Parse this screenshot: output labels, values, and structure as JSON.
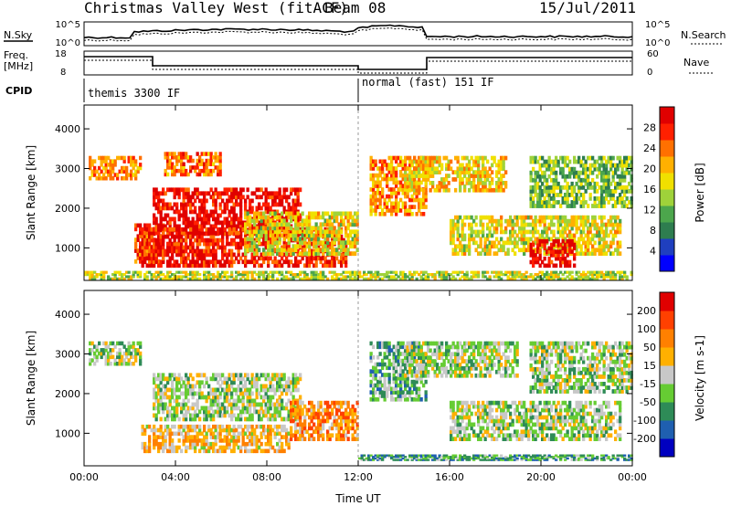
{
  "header": {
    "site": "Christmas Valley West (fitACF)",
    "beam": "Beam 08",
    "date": "15/Jul/2011"
  },
  "strip": {
    "nsky_label": "N.Sky",
    "nsearch_label": "N.Search",
    "freq_label_1": "Freq.",
    "freq_label_2": "[MHz]",
    "nave_label": "Nave",
    "cpid_label": "CPID",
    "left_ticks_top": [
      "10^5",
      "10^0"
    ],
    "right_ticks_top": [
      "10^5",
      "10^0"
    ],
    "left_ticks_freq": [
      "18",
      "8"
    ],
    "right_ticks_nave": [
      "60",
      "0"
    ],
    "cpid_segments": [
      {
        "label": "themis 3300 IF",
        "start_hour": 0,
        "end_hour": 12
      },
      {
        "label": "normal (fast) 151 IF",
        "start_hour": 12,
        "end_hour": 24
      }
    ]
  },
  "chart_data": [
    {
      "type": "heatmap",
      "name": "power",
      "ylabel": "Slant Range [km]",
      "ylim": [
        180,
        4600
      ],
      "yticks": [
        1000,
        2000,
        3000,
        4000
      ],
      "xlim": [
        0,
        24
      ],
      "xticks": [
        "00:00",
        "04:00",
        "08:00",
        "12:00",
        "16:00",
        "20:00",
        "00:00"
      ],
      "colorbar": {
        "label": "Power [dB]",
        "ticks": [
          "28",
          "24",
          "20",
          "16",
          "12",
          "8",
          "4"
        ],
        "colors": [
          "#0000ff",
          "#1f3fbf",
          "#2e7d4f",
          "#4ca64c",
          "#9fd23a",
          "#f0e000",
          "#ffb000",
          "#ff7000",
          "#ff2000",
          "#e00000"
        ]
      },
      "features": [
        {
          "t0": 0.2,
          "t1": 2.5,
          "r0": 2700,
          "r1": 3300,
          "level": 0.7
        },
        {
          "t0": 2.2,
          "t1": 3.5,
          "r0": 600,
          "r1": 1600,
          "level": 0.85
        },
        {
          "t0": 3.0,
          "t1": 9.5,
          "r0": 1300,
          "r1": 2500,
          "level": 0.95
        },
        {
          "t0": 3.5,
          "t1": 6.0,
          "r0": 2800,
          "r1": 3400,
          "level": 0.75
        },
        {
          "t0": 2.5,
          "t1": 11.5,
          "r0": 500,
          "r1": 1500,
          "level": 0.9
        },
        {
          "t0": 7.0,
          "t1": 12.0,
          "r0": 800,
          "r1": 1900,
          "level": 0.55
        },
        {
          "t0": 12.5,
          "t1": 15.0,
          "r0": 1800,
          "r1": 3300,
          "level": 0.7
        },
        {
          "t0": 14.0,
          "t1": 18.5,
          "r0": 2400,
          "r1": 3300,
          "level": 0.6
        },
        {
          "t0": 16.0,
          "t1": 23.5,
          "r0": 800,
          "r1": 1800,
          "level": 0.55
        },
        {
          "t0": 19.5,
          "t1": 21.5,
          "r0": 500,
          "r1": 1200,
          "level": 0.95
        },
        {
          "t0": 19.5,
          "t1": 24.0,
          "r0": 2000,
          "r1": 3300,
          "level": 0.4
        },
        {
          "t0": 0.0,
          "t1": 24.0,
          "r0": 180,
          "r1": 400,
          "level": 0.5
        }
      ]
    },
    {
      "type": "heatmap",
      "name": "velocity",
      "ylabel": "Slant Range [km]",
      "ylim": [
        180,
        4600
      ],
      "yticks": [
        1000,
        2000,
        3000,
        4000
      ],
      "xlim": [
        0,
        24
      ],
      "xticks": [
        "00:00",
        "04:00",
        "08:00",
        "12:00",
        "16:00",
        "20:00",
        "00:00"
      ],
      "xlabel": "Time UT",
      "colorbar": {
        "label": "Velocity [m s-1]",
        "ticks": [
          "200",
          "100",
          "50",
          "15",
          "-15",
          "-50",
          "-100",
          "-200"
        ],
        "colors": [
          "#0000c0",
          "#1f5fb0",
          "#2e8b57",
          "#66cc33",
          "#c8c8c8",
          "#ffb000",
          "#ff8000",
          "#ff4000",
          "#e00000"
        ]
      },
      "features": [
        {
          "t0": 0.2,
          "t1": 2.5,
          "r0": 2700,
          "r1": 3300,
          "level": 0.45
        },
        {
          "t0": 3.0,
          "t1": 9.5,
          "r0": 1300,
          "r1": 2500,
          "level": 0.45
        },
        {
          "t0": 2.5,
          "t1": 9.0,
          "r0": 500,
          "r1": 1200,
          "level": 0.6
        },
        {
          "t0": 9.0,
          "t1": 12.0,
          "r0": 800,
          "r1": 1800,
          "level": 0.7
        },
        {
          "t0": 12.5,
          "t1": 15.0,
          "r0": 1800,
          "r1": 3300,
          "level": 0.35
        },
        {
          "t0": 14.0,
          "t1": 19.0,
          "r0": 2400,
          "r1": 3300,
          "level": 0.45
        },
        {
          "t0": 16.0,
          "t1": 23.5,
          "r0": 800,
          "r1": 1800,
          "level": 0.45
        },
        {
          "t0": 19.5,
          "t1": 24.0,
          "r0": 2000,
          "r1": 3300,
          "level": 0.45
        },
        {
          "t0": 12.0,
          "t1": 24.0,
          "r0": 300,
          "r1": 450,
          "level": 0.3
        }
      ]
    }
  ]
}
